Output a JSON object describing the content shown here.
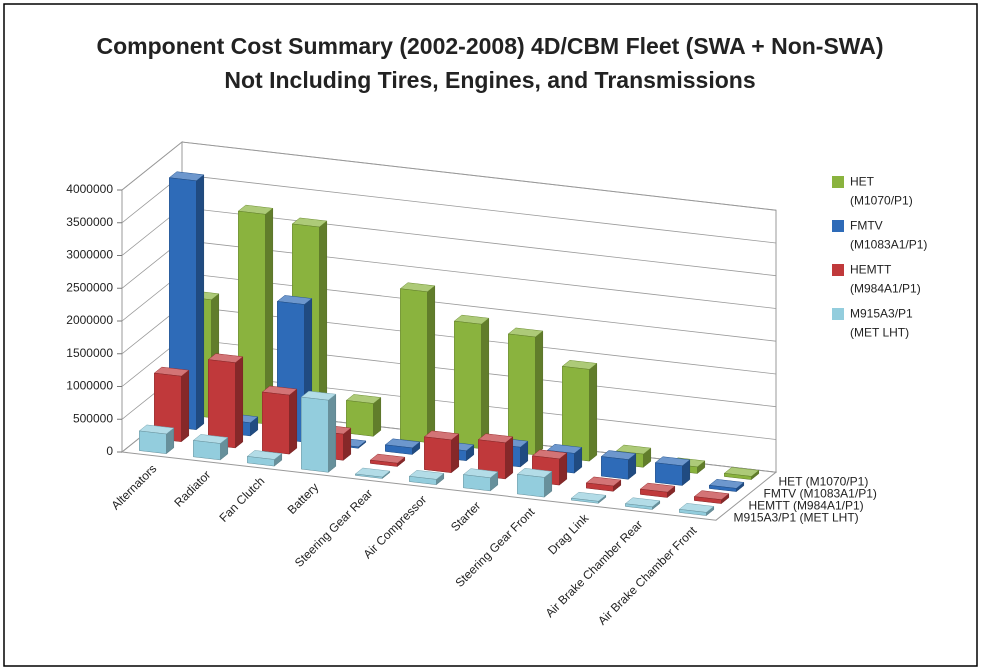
{
  "chart_data": {
    "type": "bar3d",
    "title": "Component Cost Summary (2002-2008) 4D/CBM Fleet (SWA + Non-SWA)",
    "subtitle": "Not Including Tires, Engines, and Transmissions",
    "categories": [
      "Alternators",
      "Radiator",
      "Fan Clutch",
      "Battery",
      "Steering Gear Rear",
      "Air Compressor",
      "Starter",
      "Steering Gear Front",
      "Drag Link",
      "Air Brake Chamber Rear",
      "Air Brake Chamber Front"
    ],
    "series": [
      {
        "name": "M915A3/P1 (MET LHT)",
        "legend": "M915A3/P1 (MET LHT)",
        "color": "#93cddd",
        "values": [
          300000,
          250000,
          100000,
          1100000,
          20000,
          80000,
          200000,
          300000,
          30000,
          40000,
          50000
        ]
      },
      {
        "name": "HEMTT (M984A1/P1)",
        "legend": "HEMTT (M984A1/P1)",
        "color": "#c0393b",
        "values": [
          1000000,
          1300000,
          900000,
          400000,
          50000,
          500000,
          550000,
          400000,
          80000,
          80000,
          60000
        ]
      },
      {
        "name": "FMTV (M1083A1/P1)",
        "legend": "FMTV (M1083A1/P1)",
        "color": "#2e6bb8",
        "values": [
          3800000,
          200000,
          2100000,
          20000,
          100000,
          150000,
          300000,
          300000,
          300000,
          300000,
          50000
        ]
      },
      {
        "name": "HET (M1070/P1)",
        "legend": "HET (M1070/P1)",
        "color": "#8ab33e",
        "values": [
          1800000,
          3200000,
          3100000,
          500000,
          2300000,
          1900000,
          1800000,
          1400000,
          200000,
          100000,
          50000
        ]
      }
    ],
    "ylim": [
      0,
      4000000
    ],
    "yticks": [
      0,
      500000,
      1000000,
      1500000,
      2000000,
      2500000,
      3000000,
      3500000,
      4000000
    ],
    "grid": true,
    "legend": "right"
  }
}
